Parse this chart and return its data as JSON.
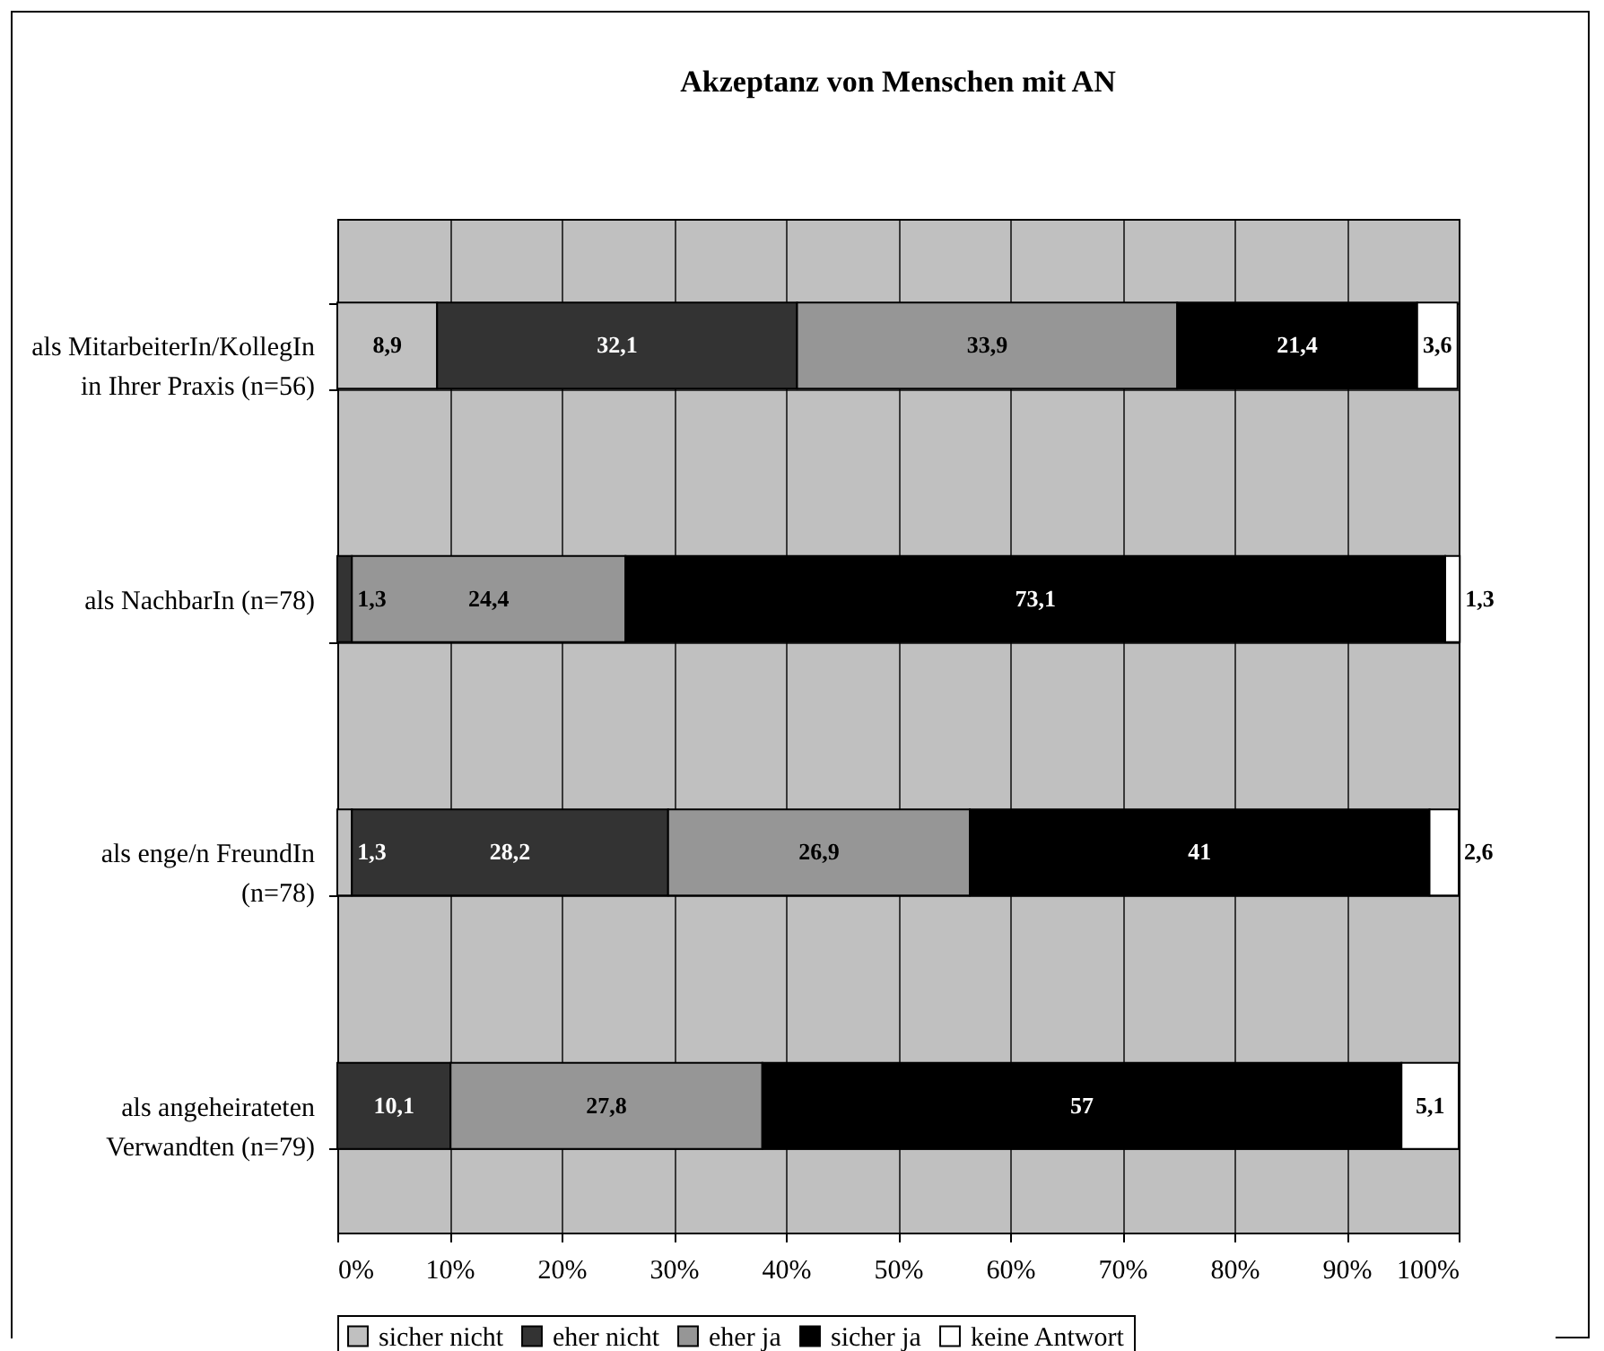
{
  "chart_data": {
    "type": "bar",
    "orientation": "horizontal",
    "stacked": true,
    "title": "Akzeptanz von Menschen mit AN",
    "categories": [
      "als MitarbeiterIn/KollegIn\nin Ihrer Praxis (n=56)",
      "als NachbarIn (n=78)",
      "als enge/n FreundIn\n(n=78)",
      "als angeheirateten\nVerwandten (n=79)"
    ],
    "series": [
      {
        "name": "sicher nicht",
        "color": "#c0c0c0",
        "values": [
          8.9,
          null,
          1.3,
          null
        ],
        "value_labels": [
          "8,9",
          null,
          "1,3",
          null
        ]
      },
      {
        "name": "eher nicht",
        "color": "#333333",
        "values": [
          32.1,
          1.3,
          28.2,
          10.1
        ],
        "value_labels": [
          "32,1",
          "1,3",
          "28,2",
          "10,1"
        ]
      },
      {
        "name": "eher ja",
        "color": "#969696",
        "values": [
          33.9,
          24.4,
          26.9,
          27.8
        ],
        "value_labels": [
          "33,9",
          "24,4",
          "26,9",
          "27,8"
        ]
      },
      {
        "name": "sicher ja",
        "color": "#000000",
        "values": [
          21.4,
          73.1,
          41,
          57
        ],
        "value_labels": [
          "21,4",
          "73,1",
          "41",
          "57"
        ]
      },
      {
        "name": "keine Antwort",
        "color": "#ffffff",
        "values": [
          3.6,
          1.3,
          2.6,
          5.1
        ],
        "value_labels": [
          "3,6",
          "1,3",
          "2,6",
          "5,1"
        ]
      }
    ],
    "xlim": [
      0,
      100
    ],
    "xticks": [
      {
        "value": 0,
        "label": "0%"
      },
      {
        "value": 10,
        "label": "10%"
      },
      {
        "value": 20,
        "label": "20%"
      },
      {
        "value": 30,
        "label": "30%"
      },
      {
        "value": 40,
        "label": "40%"
      },
      {
        "value": 50,
        "label": "50%"
      },
      {
        "value": 60,
        "label": "60%"
      },
      {
        "value": 70,
        "label": "70%"
      },
      {
        "value": 80,
        "label": "80%"
      },
      {
        "value": 90,
        "label": "90%"
      },
      {
        "value": 100,
        "label": "100%"
      }
    ],
    "grid": true,
    "legend": "bottom"
  }
}
